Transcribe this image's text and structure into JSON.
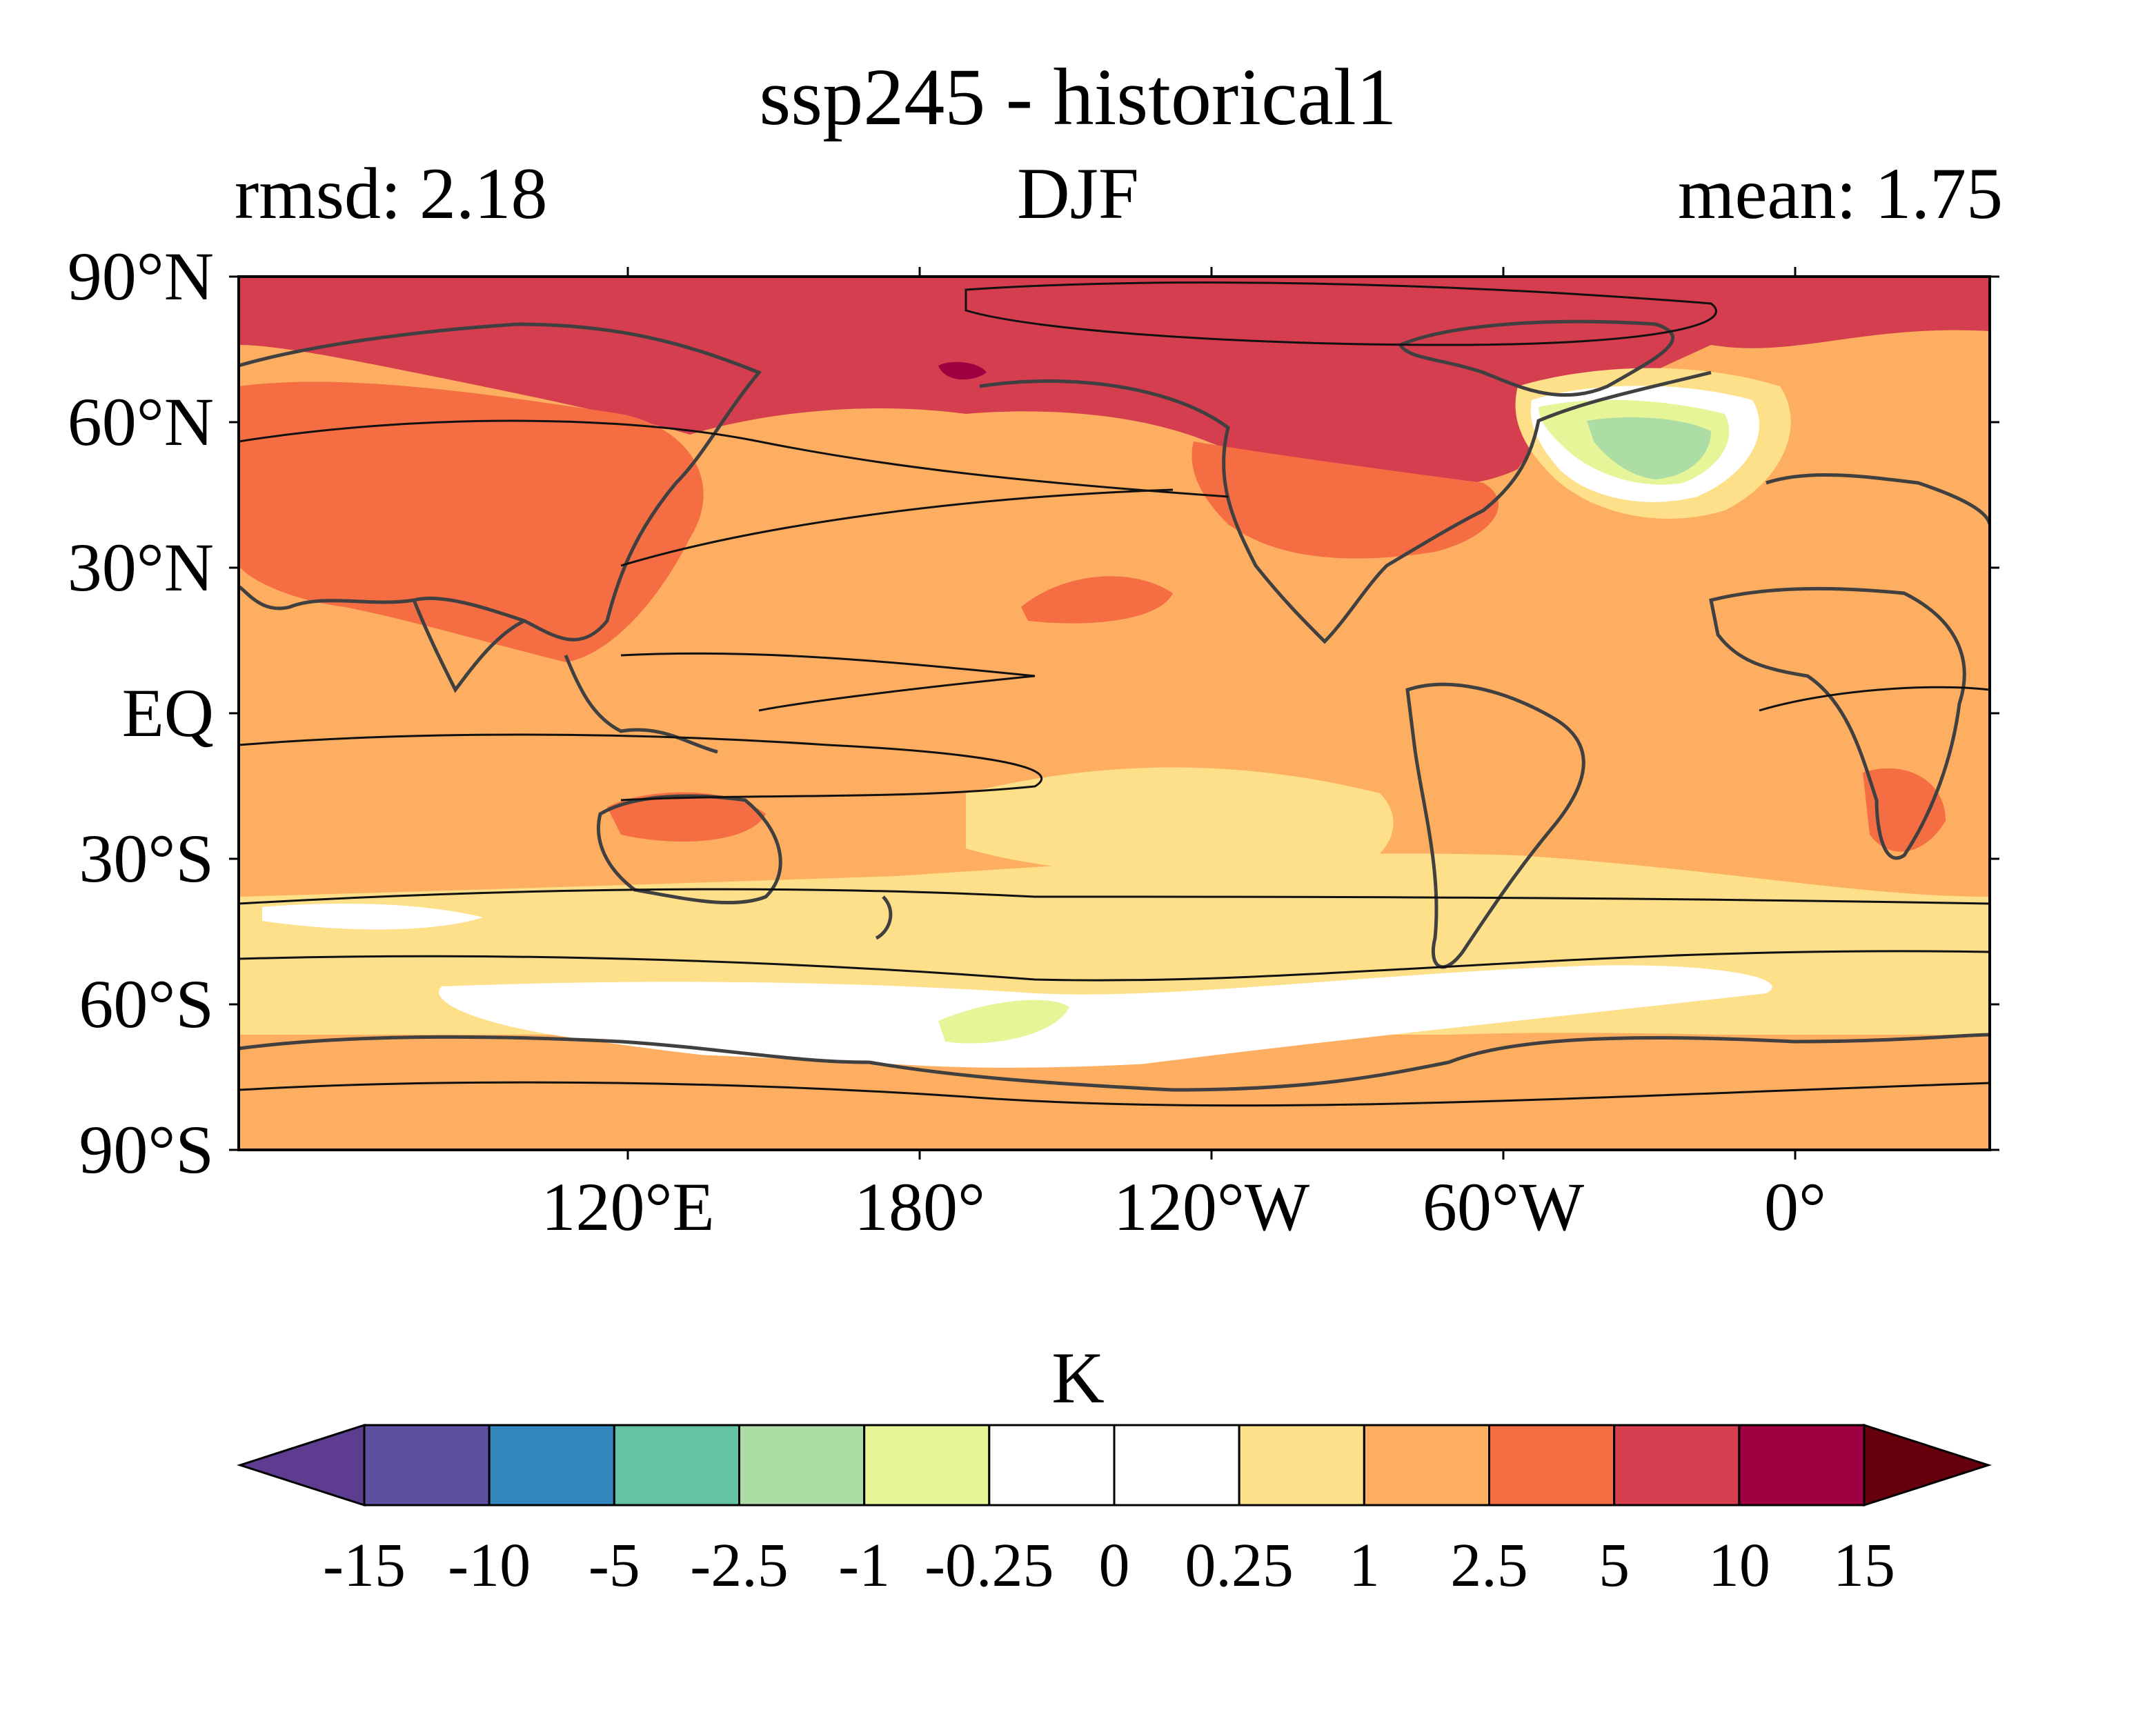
{
  "header": {
    "title": "ssp245 - historical1",
    "left_label": "rmsd: 2.18",
    "center_label": "DJF",
    "right_label": "mean: 1.75"
  },
  "axes": {
    "lat_labels": [
      "90°N",
      "60°N",
      "30°N",
      "EQ",
      "30°S",
      "60°S",
      "90°S"
    ],
    "lat_values": [
      90,
      60,
      30,
      0,
      -30,
      -60,
      -90
    ],
    "lon_labels": [
      "120°E",
      "180°",
      "120°W",
      "60°W",
      "0°"
    ],
    "lon_values": [
      120,
      180,
      240,
      300,
      360
    ],
    "lon_range": [
      40,
      400
    ],
    "lat_range": [
      -90,
      90
    ]
  },
  "colorbar": {
    "unit": "K",
    "tick_labels": [
      "-15",
      "-10",
      "-5",
      "-2.5",
      "-1",
      "-0.25",
      "0",
      "0.25",
      "1",
      "2.5",
      "5",
      "10",
      "15"
    ],
    "colors": [
      "#5e3c8f",
      "#5e50a1",
      "#3288bd",
      "#66c2a5",
      "#abdda4",
      "#e6f598",
      "#ffffff",
      "#ffffff",
      "#fee08b",
      "#fdae61",
      "#f46d43",
      "#d53e4f",
      "#9e0142",
      "#67000d"
    ],
    "extend": "both"
  },
  "map": {
    "background_color": "#fdae61",
    "arctic_color": "#d53e4f",
    "warm_color": "#f46d43",
    "light_color": "#fee08b",
    "cool_color": "#abdda4",
    "coast_color": "#404040"
  }
}
